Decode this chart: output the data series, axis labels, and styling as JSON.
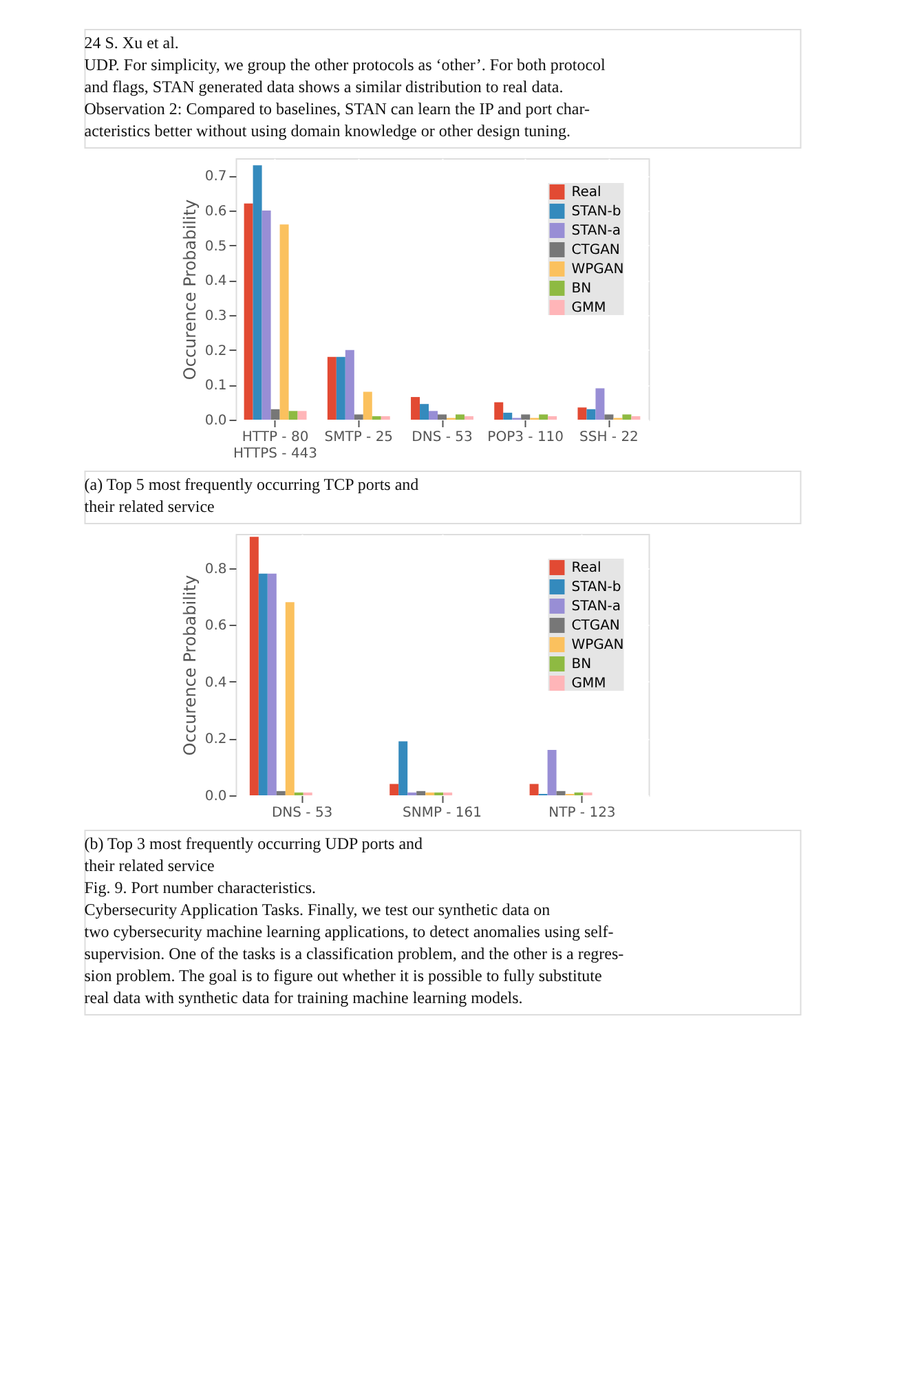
{
  "chart_data": [
    {
      "type": "bar",
      "annotations": [
        "24    S. Xu et al.",
        "UDP. For simplicity, we group the other protocols as ‘other’. For both protocol",
        "and flags, STAN generated data shows a similar distribution to real data.",
        "Observation 2: Compared to baselines, STAN can learn the IP and port char-",
        "acteristics better without using domain knowledge or other design tuning.",
        "(a) Top 5 most frequently occurring TCP ports and",
        "their related service"
      ],
      "ylabel": "Occurence Probability",
      "categories": [
        "HTTP - 80\nHTTPS - 443",
        "SMTP - 25",
        "DNS - 53",
        "POP3 - 110",
        "SSH - 22"
      ],
      "series": [
        {
          "name": "Real",
          "color": "#e24a33",
          "values": [
            0.62,
            0.18,
            0.065,
            0.05,
            0.035
          ]
        },
        {
          "name": "STAN-b",
          "color": "#348abd",
          "values": [
            0.73,
            0.18,
            0.045,
            0.02,
            0.03
          ]
        },
        {
          "name": "STAN-a",
          "color": "#988ed5",
          "values": [
            0.6,
            0.2,
            0.025,
            0.005,
            0.09
          ]
        },
        {
          "name": "CTGAN",
          "color": "#777777",
          "values": [
            0.03,
            0.015,
            0.015,
            0.015,
            0.015
          ]
        },
        {
          "name": "WPGAN",
          "color": "#fbc15e",
          "values": [
            0.56,
            0.08,
            0.005,
            0.005,
            0.005
          ]
        },
        {
          "name": "BN",
          "color": "#8eba42",
          "values": [
            0.025,
            0.01,
            0.015,
            0.015,
            0.015
          ]
        },
        {
          "name": "GMM",
          "color": "#ffb5b8",
          "values": [
            0.025,
            0.01,
            0.01,
            0.01,
            0.01
          ]
        }
      ],
      "ylim": [
        0,
        0.75
      ],
      "yticks": [
        {
          "value": 0,
          "label": "0.0"
        },
        0.1,
        0.2,
        0.3,
        0.4,
        0.5,
        0.6,
        0.7
      ],
      "grid": true,
      "legend": "top right"
    },
    {
      "type": "bar",
      "annotations": [
        "(b) Top 3 most frequently occurring UDP ports and",
        "their related service",
        "Fig. 9. Port number characteristics.",
        "Cybersecurity Application Tasks. Finally, we test our synthetic data on",
        "two cybersecurity machine learning applications, to detect anomalies using self-",
        "supervision. One of the tasks is a classification problem, and the other is a regres-",
        "sion problem. The goal is to figure out whether it is possible to fully substitute",
        "real data with synthetic data for training machine learning models."
      ],
      "ylabel": "Occurence Probability",
      "categories": [
        "DNS - 53",
        "SNMP - 161",
        "NTP - 123"
      ],
      "series": [
        {
          "name": "Real",
          "color": "#e24a33",
          "values": [
            0.91,
            0.04,
            0.04
          ]
        },
        {
          "name": "STAN-b",
          "color": "#348abd",
          "values": [
            0.78,
            0.19,
            0.005
          ]
        },
        {
          "name": "STAN-a",
          "color": "#988ed5",
          "values": [
            0.78,
            0.01,
            0.16
          ]
        },
        {
          "name": "CTGAN",
          "color": "#777777",
          "values": [
            0.015,
            0.015,
            0.015
          ]
        },
        {
          "name": "WPGAN",
          "color": "#fbc15e",
          "values": [
            0.68,
            0.01,
            0.005
          ]
        },
        {
          "name": "BN",
          "color": "#8eba42",
          "values": [
            0.01,
            0.01,
            0.01
          ]
        },
        {
          "name": "GMM",
          "color": "#ffb5b8",
          "values": [
            0.01,
            0.01,
            0.01
          ]
        }
      ],
      "ylim": [
        0,
        0.92
      ],
      "yticks": [
        {
          "value": 0,
          "label": "0.0"
        },
        0.2,
        0.4,
        0.6,
        0.8
      ],
      "grid": true,
      "legend": "top right"
    }
  ]
}
